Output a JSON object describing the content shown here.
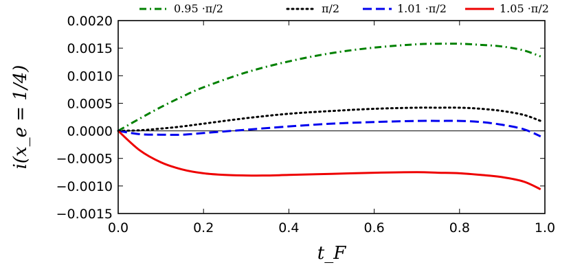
{
  "chart_data": {
    "type": "line",
    "title": "",
    "xlabel": "t_F",
    "ylabel": "i(x_e = 1/4)",
    "xlim": [
      0.0,
      1.0
    ],
    "ylim": [
      -0.0015,
      0.002
    ],
    "xticks": [
      "0.0",
      "0.2",
      "0.4",
      "0.6",
      "0.8",
      "1.0"
    ],
    "yticks": [
      "−0.0015",
      "−0.0010",
      "−0.0005",
      "0.0000",
      "0.0005",
      "0.0010",
      "0.0015",
      "0.0020"
    ],
    "zero_line": true,
    "grid": false,
    "legend_position": "top",
    "series": [
      {
        "name": "0.95 ·π/2",
        "color": "#008000",
        "dash": "dashdot",
        "x": [
          0.0,
          0.05,
          0.1,
          0.15,
          0.2,
          0.3,
          0.4,
          0.5,
          0.6,
          0.7,
          0.75,
          0.8,
          0.85,
          0.9,
          0.95,
          0.99
        ],
        "y": [
          0.0,
          0.00022,
          0.00043,
          0.00062,
          0.00079,
          0.00106,
          0.00126,
          0.00141,
          0.00151,
          0.00157,
          0.00158,
          0.00158,
          0.00156,
          0.00153,
          0.00146,
          0.00135
        ]
      },
      {
        "name": "π/2",
        "color": "#000000",
        "dash": "dotted",
        "x": [
          0.0,
          0.05,
          0.1,
          0.15,
          0.2,
          0.3,
          0.4,
          0.5,
          0.6,
          0.7,
          0.75,
          0.8,
          0.85,
          0.9,
          0.95,
          0.99
        ],
        "y": [
          0.0,
          1e-05,
          4e-05,
          8e-05,
          0.00013,
          0.00023,
          0.00031,
          0.00036,
          0.0004,
          0.00042,
          0.00042,
          0.00042,
          0.0004,
          0.00036,
          0.00029,
          0.00018
        ]
      },
      {
        "name": "1.01 ·π/2",
        "color": "#0000ee",
        "dash": "dashed",
        "x": [
          0.0,
          0.05,
          0.1,
          0.15,
          0.2,
          0.25,
          0.3,
          0.4,
          0.5,
          0.6,
          0.7,
          0.75,
          0.8,
          0.85,
          0.9,
          0.95,
          0.99
        ],
        "y": [
          0.0,
          -6e-05,
          -7e-05,
          -7e-05,
          -4e-05,
          -1e-05,
          2e-05,
          8e-05,
          0.00013,
          0.00016,
          0.00018,
          0.00018,
          0.00018,
          0.00016,
          0.00011,
          3e-05,
          -0.0001
        ]
      },
      {
        "name": "1.05 ·π/2",
        "color": "#ee0000",
        "dash": "solid",
        "x": [
          0.0,
          0.05,
          0.1,
          0.15,
          0.2,
          0.25,
          0.3,
          0.35,
          0.4,
          0.5,
          0.6,
          0.7,
          0.75,
          0.8,
          0.85,
          0.9,
          0.95,
          0.99
        ],
        "y": [
          0.0,
          -0.00035,
          -0.00057,
          -0.0007,
          -0.00077,
          -0.0008,
          -0.00081,
          -0.00081,
          -0.0008,
          -0.00078,
          -0.00076,
          -0.00075,
          -0.00076,
          -0.00077,
          -0.0008,
          -0.00084,
          -0.00092,
          -0.00106
        ]
      }
    ]
  }
}
